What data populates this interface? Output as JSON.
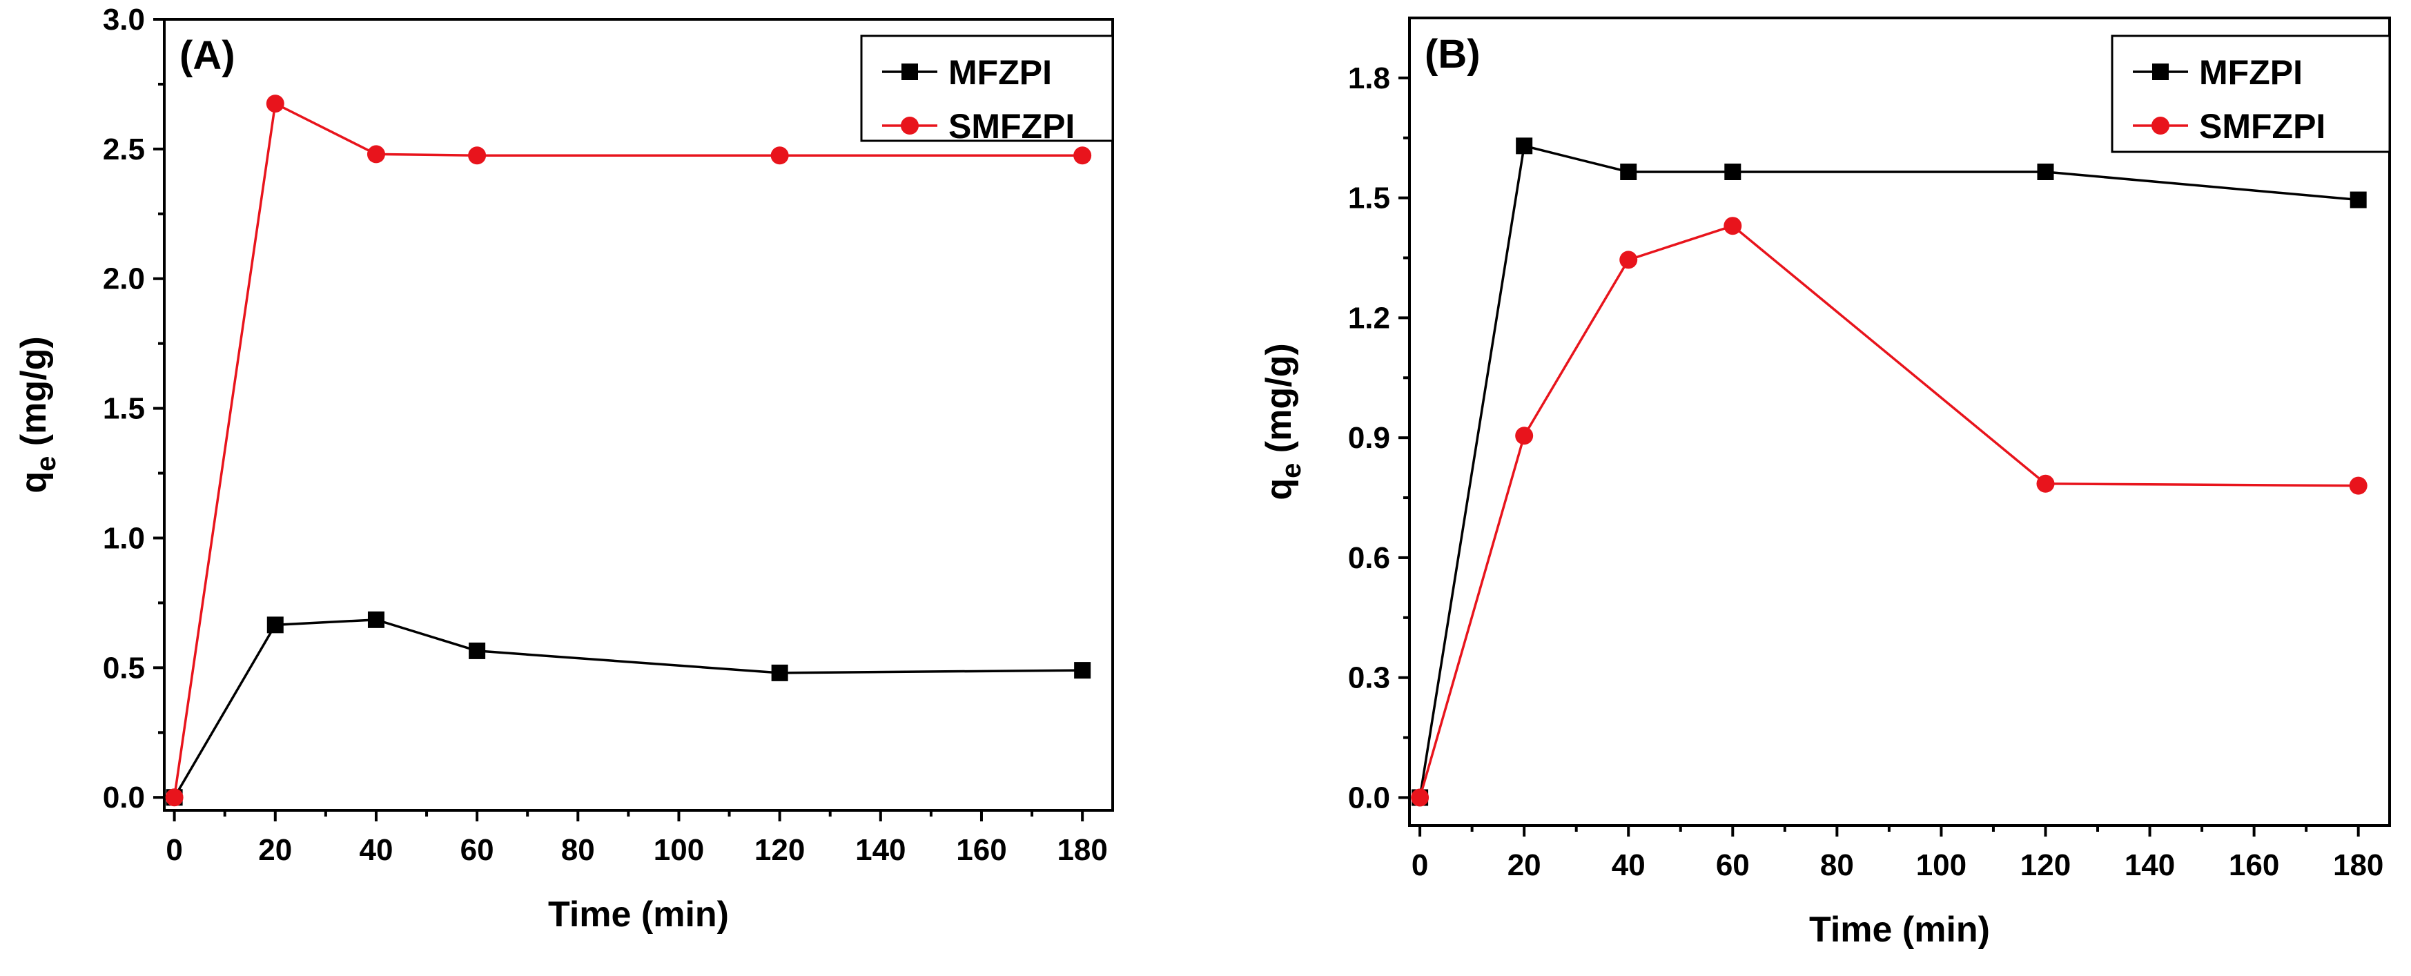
{
  "chart_data": [
    {
      "type": "line",
      "panel_label": "(A)",
      "xlabel": "Time (min)",
      "ylabel_main": "q",
      "ylabel_sub": "e",
      "ylabel_unit": " (mg/g)",
      "x_ticks": [
        0,
        20,
        40,
        60,
        80,
        100,
        120,
        140,
        160,
        180
      ],
      "y_ticks": [
        "0.0",
        "0.5",
        "1.0",
        "1.5",
        "2.0",
        "2.5",
        "3.0"
      ],
      "xlim": [
        -2,
        186
      ],
      "ylim": [
        -0.05,
        3.0
      ],
      "legend_position": "top-right",
      "grid": false,
      "series": [
        {
          "name": "MFZPI",
          "color": "#000000",
          "marker": "square",
          "x": [
            0,
            20,
            40,
            60,
            120,
            180
          ],
          "y": [
            0.0,
            0.665,
            0.685,
            0.565,
            0.48,
            0.49
          ]
        },
        {
          "name": "SMFZPI",
          "color": "#e8141c",
          "marker": "circle",
          "x": [
            0,
            20,
            40,
            60,
            120,
            180
          ],
          "y": [
            0.0,
            2.675,
            2.48,
            2.475,
            2.475,
            2.475
          ]
        }
      ]
    },
    {
      "type": "line",
      "panel_label": "(B)",
      "xlabel": "Time (min)",
      "ylabel_main": "q",
      "ylabel_sub": "e",
      "ylabel_unit": " (mg/g)",
      "x_ticks": [
        0,
        20,
        40,
        60,
        80,
        100,
        120,
        140,
        160,
        180
      ],
      "y_ticks": [
        "0.0",
        "0.3",
        "0.6",
        "0.9",
        "1.2",
        "1.5",
        "1.8"
      ],
      "xlim": [
        -2,
        186
      ],
      "ylim": [
        -0.07,
        1.95
      ],
      "legend_position": "top-right",
      "grid": false,
      "series": [
        {
          "name": "MFZPI",
          "color": "#000000",
          "marker": "square",
          "x": [
            0,
            20,
            40,
            60,
            120,
            180
          ],
          "y": [
            0.0,
            1.63,
            1.565,
            1.565,
            1.565,
            1.495
          ]
        },
        {
          "name": "SMFZPI",
          "color": "#e8141c",
          "marker": "circle",
          "x": [
            0,
            20,
            40,
            60,
            120,
            180
          ],
          "y": [
            0.0,
            0.905,
            1.345,
            1.43,
            0.785,
            0.78
          ]
        }
      ]
    }
  ]
}
